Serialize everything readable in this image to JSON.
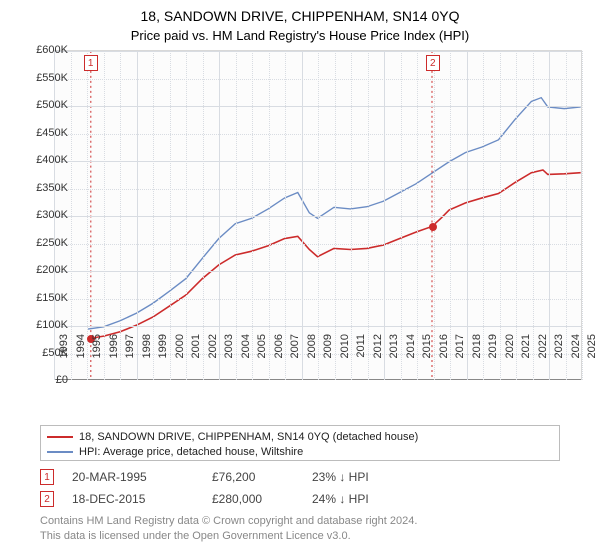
{
  "title": "18, SANDOWN DRIVE, CHIPPENHAM, SN14 0YQ",
  "subtitle": "Price paid vs. HM Land Registry's House Price Index (HPI)",
  "chart": {
    "type": "line",
    "background_color": "#fcfcfc",
    "grid_color": "#d8dce2",
    "x": {
      "min": 1993,
      "max": 2025,
      "step": 1,
      "labels": [
        "1993",
        "1994",
        "1995",
        "1996",
        "1997",
        "1998",
        "1999",
        "2000",
        "2001",
        "2002",
        "2003",
        "2004",
        "2005",
        "2006",
        "2007",
        "2008",
        "2009",
        "2010",
        "2011",
        "2012",
        "2013",
        "2014",
        "2015",
        "2016",
        "2017",
        "2018",
        "2019",
        "2020",
        "2021",
        "2022",
        "2023",
        "2024",
        "2025"
      ]
    },
    "y": {
      "min": 0,
      "max": 600000,
      "step": 50000,
      "labels": [
        "£0",
        "£50K",
        "£100K",
        "£150K",
        "£200K",
        "£250K",
        "£300K",
        "£350K",
        "£400K",
        "£450K",
        "£500K",
        "£550K",
        "£600K"
      ]
    },
    "series": [
      {
        "name": "price_paid",
        "label": "18, SANDOWN DRIVE, CHIPPENHAM, SN14 0YQ (detached house)",
        "color": "#cc2b2b",
        "line_width": 1.6,
        "points": [
          [
            1995.22,
            76200
          ],
          [
            1996,
            80000
          ],
          [
            1997,
            88000
          ],
          [
            1998,
            100000
          ],
          [
            1999,
            115000
          ],
          [
            2000,
            135000
          ],
          [
            2001,
            155000
          ],
          [
            2002,
            185000
          ],
          [
            2003,
            210000
          ],
          [
            2004,
            228000
          ],
          [
            2005,
            235000
          ],
          [
            2006,
            245000
          ],
          [
            2007,
            258000
          ],
          [
            2007.8,
            262000
          ],
          [
            2008.5,
            238000
          ],
          [
            2009,
            225000
          ],
          [
            2010,
            240000
          ],
          [
            2011,
            238000
          ],
          [
            2012,
            240000
          ],
          [
            2013,
            246000
          ],
          [
            2014,
            258000
          ],
          [
            2015,
            270000
          ],
          [
            2015.96,
            280000
          ],
          [
            2016.5,
            295000
          ],
          [
            2017,
            310000
          ],
          [
            2018,
            323000
          ],
          [
            2019,
            332000
          ],
          [
            2020,
            340000
          ],
          [
            2021,
            360000
          ],
          [
            2022,
            378000
          ],
          [
            2022.7,
            383000
          ],
          [
            2023,
            375000
          ],
          [
            2024,
            376000
          ],
          [
            2025,
            378000
          ]
        ]
      },
      {
        "name": "hpi",
        "label": "HPI: Average price, detached house, Wiltshire",
        "color": "#6b8cc4",
        "line_width": 1.4,
        "points": [
          [
            1995.05,
            93000
          ],
          [
            1996,
            97000
          ],
          [
            1997,
            108000
          ],
          [
            1998,
            122000
          ],
          [
            1999,
            140000
          ],
          [
            2000,
            162000
          ],
          [
            2001,
            185000
          ],
          [
            2002,
            222000
          ],
          [
            2003,
            258000
          ],
          [
            2004,
            285000
          ],
          [
            2005,
            295000
          ],
          [
            2006,
            312000
          ],
          [
            2007,
            332000
          ],
          [
            2007.8,
            342000
          ],
          [
            2008.5,
            305000
          ],
          [
            2009,
            295000
          ],
          [
            2010,
            315000
          ],
          [
            2011,
            312000
          ],
          [
            2012,
            316000
          ],
          [
            2013,
            326000
          ],
          [
            2014,
            342000
          ],
          [
            2015,
            358000
          ],
          [
            2016,
            378000
          ],
          [
            2017,
            398000
          ],
          [
            2018,
            415000
          ],
          [
            2019,
            425000
          ],
          [
            2020,
            438000
          ],
          [
            2021,
            475000
          ],
          [
            2022,
            508000
          ],
          [
            2022.6,
            515000
          ],
          [
            2023,
            498000
          ],
          [
            2024,
            495000
          ],
          [
            2025,
            498000
          ]
        ]
      }
    ],
    "markers": [
      {
        "id": "1",
        "x": 1995.22,
        "y": 76200,
        "color": "#cc2b2b"
      },
      {
        "id": "2",
        "x": 2015.96,
        "y": 280000,
        "color": "#cc2b2b"
      }
    ],
    "marker_vline_color": "#cc2b2b"
  },
  "legend": {
    "items": [
      {
        "color": "#cc2b2b",
        "label": "18, SANDOWN DRIVE, CHIPPENHAM, SN14 0YQ (detached house)"
      },
      {
        "color": "#6b8cc4",
        "label": "HPI: Average price, detached house, Wiltshire"
      }
    ]
  },
  "transactions": [
    {
      "id": "1",
      "date": "20-MAR-1995",
      "price": "£76,200",
      "delta": "23% ↓ HPI"
    },
    {
      "id": "2",
      "date": "18-DEC-2015",
      "price": "£280,000",
      "delta": "24% ↓ HPI"
    }
  ],
  "footer": {
    "line1": "Contains HM Land Registry data © Crown copyright and database right 2024.",
    "line2": "This data is licensed under the Open Government Licence v3.0."
  }
}
